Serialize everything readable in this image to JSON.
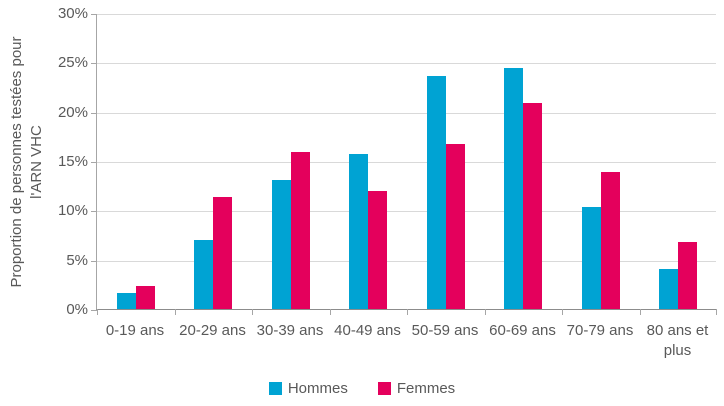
{
  "chart_data": {
    "type": "bar",
    "ylabel": "Proportion de personnes testées pour l'ARN VHC",
    "ylabel_lines": [
      "Proportion de personnes testées pour",
      "l'ARN VHC"
    ],
    "xlabel": "",
    "ylim": [
      0,
      30
    ],
    "ytick_step": 5,
    "ytick_labels": [
      "0%",
      "5%",
      "10%",
      "15%",
      "20%",
      "25%",
      "30%"
    ],
    "grid": true,
    "legend_position": "bottom-center",
    "categories": [
      "0-19 ans",
      "20-29 ans",
      "30-39 ans",
      "40-49 ans",
      "50-59 ans",
      "60-69 ans",
      "70-79 ans",
      "80 ans et plus"
    ],
    "series": [
      {
        "name": "Hommes",
        "color": "#00A3D3",
        "values": [
          1.6,
          7.0,
          13.1,
          15.7,
          23.6,
          24.4,
          10.3,
          4.1
        ]
      },
      {
        "name": "Femmes",
        "color": "#E4005C",
        "values": [
          2.3,
          11.4,
          15.9,
          12.0,
          16.7,
          20.9,
          13.9,
          6.8
        ]
      }
    ]
  },
  "colors": {
    "hommes": "#00A3D3",
    "femmes": "#E4005C",
    "gridline": "#D9D9D9",
    "axis": "#A6A6A6",
    "text": "#595959"
  }
}
